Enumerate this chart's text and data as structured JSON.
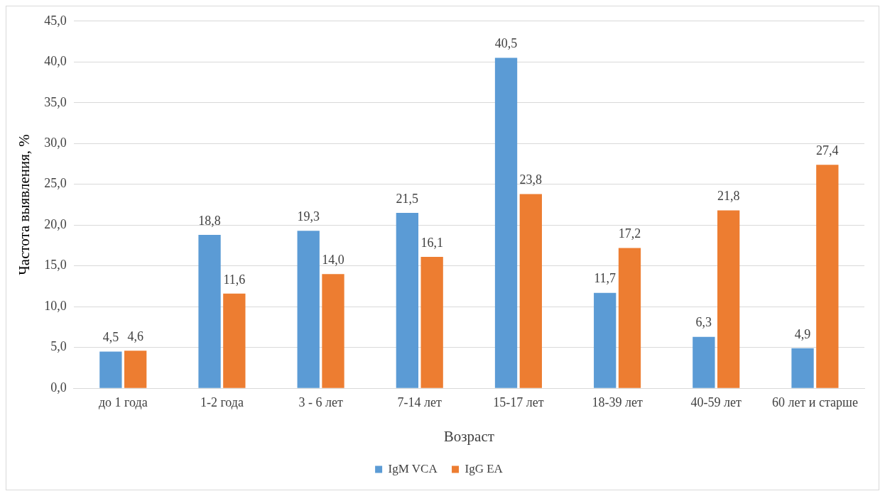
{
  "chart_data": {
    "type": "bar",
    "xlabel": "Возраст",
    "ylabel": "Частота выявления, %",
    "categories": [
      "до 1 года",
      "1-2 года",
      "3 - 6 лет",
      "7-14 лет",
      "15-17 лет",
      "18-39 лет",
      "40-59 лет",
      "60 лет и старше"
    ],
    "series": [
      {
        "name": "IgM VCA",
        "color": "#5b9bd5",
        "values": [
          4.5,
          18.8,
          19.3,
          21.5,
          40.5,
          11.7,
          6.3,
          4.9
        ],
        "value_labels": [
          "4,5",
          "18,8",
          "19,3",
          "21,5",
          "40,5",
          "11,7",
          "6,3",
          "4,9"
        ]
      },
      {
        "name": "IgG EA",
        "color": "#ed7d31",
        "values": [
          4.6,
          11.6,
          14.0,
          16.1,
          23.8,
          17.2,
          21.8,
          27.4
        ],
        "value_labels": [
          "4,6",
          "11,6",
          "14,0",
          "16,1",
          "23,8",
          "17,2",
          "21,8",
          "27,4"
        ]
      }
    ],
    "ylim": [
      0,
      45
    ],
    "yticks": [
      {
        "value": 0,
        "label": "0,0"
      },
      {
        "value": 5,
        "label": "5,0"
      },
      {
        "value": 10,
        "label": "10,0"
      },
      {
        "value": 15,
        "label": "15,0"
      },
      {
        "value": 20,
        "label": "20,0"
      },
      {
        "value": 25,
        "label": "25,0"
      },
      {
        "value": 30,
        "label": "30,0"
      },
      {
        "value": 35,
        "label": "35,0"
      },
      {
        "value": 40,
        "label": "40,0"
      },
      {
        "value": 45,
        "label": "45,0"
      }
    ],
    "grid": "y",
    "legend": "bottom"
  }
}
